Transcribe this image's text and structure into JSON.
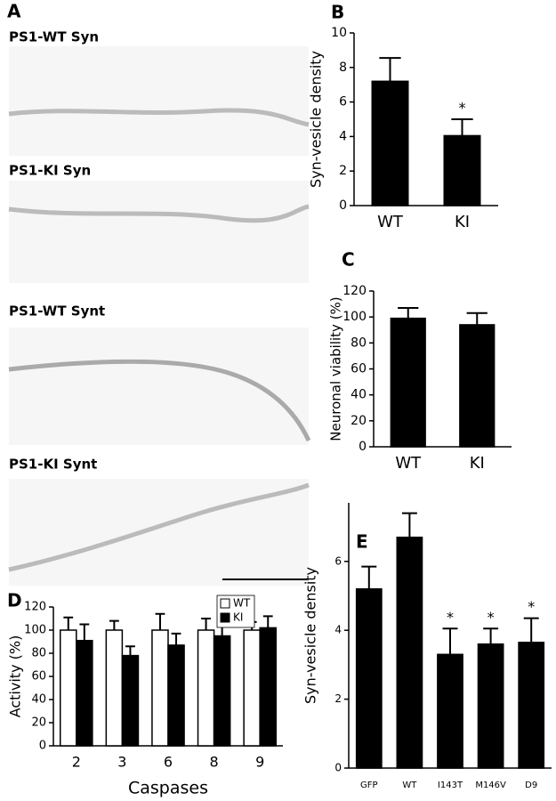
{
  "panel_a": {
    "label": "A",
    "images": [
      {
        "title": "PS1-WT Syn"
      },
      {
        "title": "PS1-KI Syn"
      },
      {
        "title": "PS1-WT Synt"
      },
      {
        "title": "PS1-KI Synt"
      }
    ]
  },
  "chart_data": [
    {
      "type": "bar",
      "panel": "B",
      "ylabel": "Syn-vesicle density",
      "categories": [
        "WT",
        "KI"
      ],
      "values": [
        7.2,
        4.05
      ],
      "errors": [
        1.35,
        0.95
      ],
      "significance": [
        null,
        "*"
      ],
      "color": "#000000",
      "ylim": [
        0,
        10
      ],
      "yticks": [
        0,
        2,
        4,
        6,
        8,
        10
      ]
    },
    {
      "type": "bar",
      "panel": "C",
      "ylabel": "Neuronal viability (%)",
      "categories": [
        "WT",
        "KI"
      ],
      "values": [
        99,
        94
      ],
      "errors": [
        8,
        9
      ],
      "color": "#000000",
      "ylim": [
        0,
        120
      ],
      "yticks": [
        0,
        20,
        40,
        60,
        80,
        100,
        120
      ]
    },
    {
      "type": "bar",
      "panel": "D",
      "ylabel": "Activity (%)",
      "xlabel": "Caspases",
      "categories": [
        "2",
        "3",
        "6",
        "8",
        "9"
      ],
      "series": [
        {
          "name": "WT",
          "color": "#ffffff",
          "values": [
            100,
            100,
            100,
            100,
            100
          ],
          "errors": [
            11,
            8,
            14,
            10,
            7
          ]
        },
        {
          "name": "KI",
          "color": "#000000",
          "values": [
            91,
            78,
            87,
            95,
            102
          ],
          "errors": [
            14,
            8,
            10,
            12,
            10
          ]
        }
      ],
      "ylim": [
        0,
        120
      ],
      "yticks": [
        0,
        20,
        40,
        60,
        80,
        100,
        120
      ],
      "legend": "top-right"
    },
    {
      "type": "bar",
      "panel": "E",
      "ylabel": "Syn-vesicle density",
      "categories": [
        "GFP",
        "WT",
        "I143T",
        "M146V",
        "D9"
      ],
      "values": [
        5.2,
        6.7,
        3.3,
        3.6,
        3.65
      ],
      "errors": [
        0.65,
        0.7,
        0.75,
        0.45,
        0.7
      ],
      "significance": [
        null,
        null,
        "*",
        "*",
        "*"
      ],
      "color": "#000000",
      "ylim": [
        0,
        7.7
      ],
      "yticks": [
        0,
        2,
        4,
        6
      ]
    }
  ]
}
